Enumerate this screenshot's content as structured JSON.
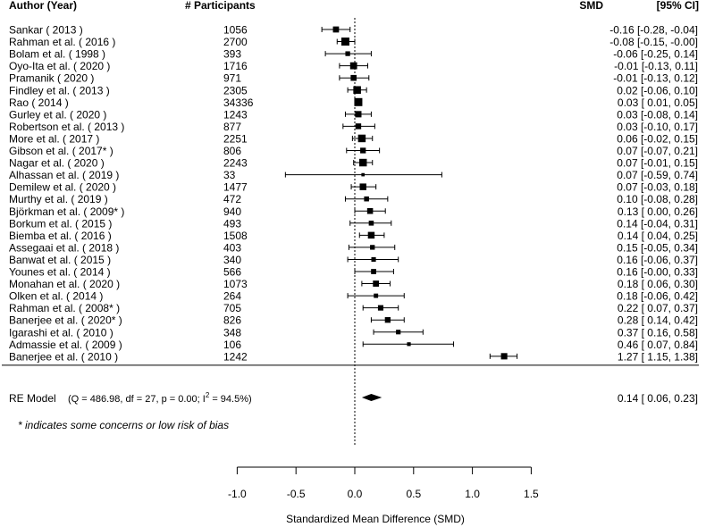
{
  "chart_data": {
    "type": "forest",
    "headers": {
      "study": "Author (Year)",
      "participants": "# Participants",
      "smd": "SMD",
      "ci": "[95% CI]"
    },
    "studies": [
      {
        "label": "Sankar ( 2013 )",
        "n": "1056",
        "smd": -0.16,
        "lo": -0.28,
        "hi": -0.04,
        "text": "-0.16 [-0.28, -0.04]"
      },
      {
        "label": "Rahman et al. ( 2016 )",
        "n": "2700",
        "smd": -0.08,
        "lo": -0.15,
        "hi": -0.0,
        "text": "-0.08 [-0.15, -0.00]"
      },
      {
        "label": "Bolam et al. ( 1998 )",
        "n": "393",
        "smd": -0.06,
        "lo": -0.25,
        "hi": 0.14,
        "text": "-0.06 [-0.25, 0.14]"
      },
      {
        "label": "Oyo-Ita et al. ( 2020 )",
        "n": "1716",
        "smd": -0.01,
        "lo": -0.13,
        "hi": 0.11,
        "text": "-0.01 [-0.13, 0.11]"
      },
      {
        "label": "Pramanik ( 2020 )",
        "n": "971",
        "smd": -0.01,
        "lo": -0.13,
        "hi": 0.12,
        "text": "-0.01 [-0.13, 0.12]"
      },
      {
        "label": "Findley et al. ( 2013 )",
        "n": "2305",
        "smd": 0.02,
        "lo": -0.06,
        "hi": 0.1,
        "text": "0.02 [-0.06, 0.10]"
      },
      {
        "label": "Rao ( 2014 )",
        "n": "34336",
        "smd": 0.03,
        "lo": 0.01,
        "hi": 0.05,
        "text": "0.03 [ 0.01, 0.05]"
      },
      {
        "label": "Gurley et al. ( 2020 )",
        "n": "1243",
        "smd": 0.03,
        "lo": -0.08,
        "hi": 0.14,
        "text": "0.03 [-0.08, 0.14]"
      },
      {
        "label": "Robertson et al. ( 2013 )",
        "n": "877",
        "smd": 0.03,
        "lo": -0.1,
        "hi": 0.17,
        "text": "0.03 [-0.10, 0.17]"
      },
      {
        "label": "More et al. ( 2017 )",
        "n": "2251",
        "smd": 0.06,
        "lo": -0.02,
        "hi": 0.15,
        "text": "0.06 [-0.02, 0.15]"
      },
      {
        "label": "Gibson et al. ( 2017* )",
        "n": "806",
        "smd": 0.07,
        "lo": -0.07,
        "hi": 0.21,
        "text": "0.07 [-0.07, 0.21]"
      },
      {
        "label": "Nagar et al. ( 2020 )",
        "n": "2243",
        "smd": 0.07,
        "lo": -0.01,
        "hi": 0.15,
        "text": "0.07 [-0.01, 0.15]"
      },
      {
        "label": "Alhassan et al. ( 2019 )",
        "n": "33",
        "smd": 0.07,
        "lo": -0.59,
        "hi": 0.74,
        "text": "0.07 [-0.59, 0.74]"
      },
      {
        "label": "Demilew et al. ( 2020 )",
        "n": "1477",
        "smd": 0.07,
        "lo": -0.03,
        "hi": 0.18,
        "text": "0.07 [-0.03, 0.18]"
      },
      {
        "label": "Murthy et al. ( 2019 )",
        "n": "472",
        "smd": 0.1,
        "lo": -0.08,
        "hi": 0.28,
        "text": "0.10 [-0.08, 0.28]"
      },
      {
        "label": "Björkman et al. ( 2009* )",
        "n": "940",
        "smd": 0.13,
        "lo": 0.0,
        "hi": 0.26,
        "text": "0.13 [ 0.00, 0.26]"
      },
      {
        "label": "Borkum et al. ( 2015 )",
        "n": "493",
        "smd": 0.14,
        "lo": -0.04,
        "hi": 0.31,
        "text": "0.14 [-0.04, 0.31]"
      },
      {
        "label": "Biemba et al. ( 2016 )",
        "n": "1508",
        "smd": 0.14,
        "lo": 0.04,
        "hi": 0.25,
        "text": "0.14 [ 0.04, 0.25]"
      },
      {
        "label": "Assegaai et al. ( 2018 )",
        "n": "403",
        "smd": 0.15,
        "lo": -0.05,
        "hi": 0.34,
        "text": "0.15 [-0.05, 0.34]"
      },
      {
        "label": "Banwat et al. ( 2015 )",
        "n": "340",
        "smd": 0.16,
        "lo": -0.06,
        "hi": 0.37,
        "text": "0.16 [-0.06, 0.37]"
      },
      {
        "label": "Younes et al. ( 2014 )",
        "n": "566",
        "smd": 0.16,
        "lo": -0.0,
        "hi": 0.33,
        "text": "0.16 [-0.00, 0.33]"
      },
      {
        "label": "Monahan et al. ( 2020 )",
        "n": "1073",
        "smd": 0.18,
        "lo": 0.06,
        "hi": 0.3,
        "text": "0.18 [ 0.06, 0.30]"
      },
      {
        "label": "Olken et al. ( 2014 )",
        "n": "264",
        "smd": 0.18,
        "lo": -0.06,
        "hi": 0.42,
        "text": "0.18 [-0.06, 0.42]"
      },
      {
        "label": "Rahman et al. ( 2008* )",
        "n": "705",
        "smd": 0.22,
        "lo": 0.07,
        "hi": 0.37,
        "text": "0.22 [ 0.07, 0.37]"
      },
      {
        "label": "Banerjee et al. ( 2020* )",
        "n": "826",
        "smd": 0.28,
        "lo": 0.14,
        "hi": 0.42,
        "text": "0.28 [ 0.14, 0.42]"
      },
      {
        "label": "Igarashi et al. ( 2010 )",
        "n": "348",
        "smd": 0.37,
        "lo": 0.16,
        "hi": 0.58,
        "text": "0.37 [ 0.16, 0.58]"
      },
      {
        "label": "Admassie et al. ( 2009 )",
        "n": "106",
        "smd": 0.46,
        "lo": 0.07,
        "hi": 0.84,
        "text": "0.46 [ 0.07, 0.84]"
      },
      {
        "label": "Banerjee et al. ( 2010 )",
        "n": "1242",
        "smd": 1.27,
        "lo": 1.15,
        "hi": 1.38,
        "text": "1.27 [ 1.15, 1.38]"
      }
    ],
    "summary": {
      "label": "RE Model",
      "stats": "(Q = 486.98, df = 27, p = 0.00; I",
      "stats_sup": "2",
      "stats_end": " = 94.5%)",
      "smd": 0.14,
      "lo": 0.06,
      "hi": 0.23,
      "text": "0.14 [ 0.06, 0.23]"
    },
    "footnote": "* indicates some concerns or low risk of bias",
    "x_axis": {
      "label": "Standardized Mean Difference (SMD)",
      "min": -1.0,
      "max": 1.5,
      "ticks": [
        -1.0,
        -0.5,
        0.0,
        0.5,
        1.0,
        1.5
      ],
      "tick_labels": [
        "-1.0",
        "-0.5",
        "0.0",
        "0.5",
        "1.0",
        "1.5"
      ],
      "reference_line": 0
    },
    "colors": {
      "ink": "#000000",
      "background": "#ffffff"
    }
  }
}
